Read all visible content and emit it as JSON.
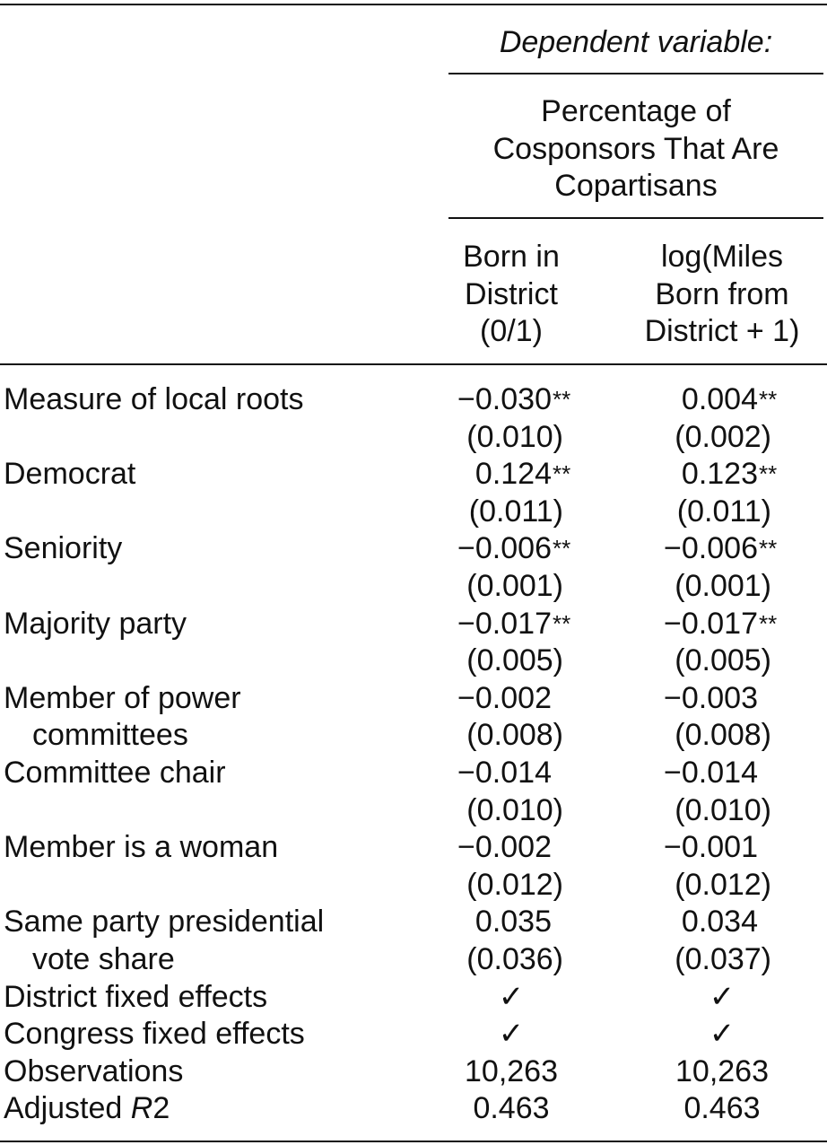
{
  "header": {
    "dependent_variable": "Dependent variable:",
    "dependent": [
      "Percentage of",
      "Cosponsors That Are",
      "Copartisans"
    ],
    "columns": [
      [
        "Born in",
        "District",
        "(0/1)"
      ],
      [
        "log(Miles",
        "Born from",
        "District + 1)"
      ]
    ]
  },
  "table": {
    "rows": [
      {
        "label": [
          "Measure of local roots"
        ],
        "cols": [
          {
            "coef": "−0.030",
            "sig": "**",
            "se": "(0.010)"
          },
          {
            "coef": "0.004",
            "sig": "**",
            "se": "(0.002)"
          }
        ]
      },
      {
        "label": [
          "Democrat"
        ],
        "cols": [
          {
            "coef": "0.124",
            "sig": "**",
            "se": "(0.011)"
          },
          {
            "coef": "0.123",
            "sig": "**",
            "se": "(0.011)"
          }
        ]
      },
      {
        "label": [
          "Seniority"
        ],
        "cols": [
          {
            "coef": "−0.006",
            "sig": "**",
            "se": "(0.001)"
          },
          {
            "coef": "−0.006",
            "sig": "**",
            "se": "(0.001)"
          }
        ]
      },
      {
        "label": [
          "Majority party"
        ],
        "cols": [
          {
            "coef": "−0.017",
            "sig": "**",
            "se": "(0.005)"
          },
          {
            "coef": "−0.017",
            "sig": "**",
            "se": "(0.005)"
          }
        ]
      },
      {
        "label": [
          "Member of power",
          "committees"
        ],
        "cols": [
          {
            "coef": "−0.002",
            "se": "(0.008)"
          },
          {
            "coef": "−0.003",
            "se": "(0.008)"
          }
        ]
      },
      {
        "label": [
          "Committee chair"
        ],
        "cols": [
          {
            "coef": "−0.014",
            "se": "(0.010)"
          },
          {
            "coef": "−0.014",
            "se": "(0.010)"
          }
        ]
      },
      {
        "label": [
          "Member is a woman"
        ],
        "cols": [
          {
            "coef": "−0.002",
            "se": "(0.012)"
          },
          {
            "coef": "−0.001",
            "se": "(0.012)"
          }
        ]
      },
      {
        "label": [
          "Same party presidential",
          "vote share"
        ],
        "cols": [
          {
            "coef": "0.035",
            "se": "(0.036)"
          },
          {
            "coef": "0.034",
            "se": "(0.037)"
          }
        ]
      },
      {
        "label": [
          "District fixed effects"
        ],
        "cols": [
          "✓",
          "✓"
        ]
      },
      {
        "label": [
          "Congress fixed effects"
        ],
        "cols": [
          "✓",
          "✓"
        ]
      },
      {
        "label": [
          "Observations"
        ],
        "cols": [
          "10,263",
          "10,263"
        ]
      },
      {
        "label_parts": [
          "Adjusted ",
          "R",
          "2"
        ],
        "cols": [
          "0.463",
          "0.463"
        ]
      }
    ]
  }
}
